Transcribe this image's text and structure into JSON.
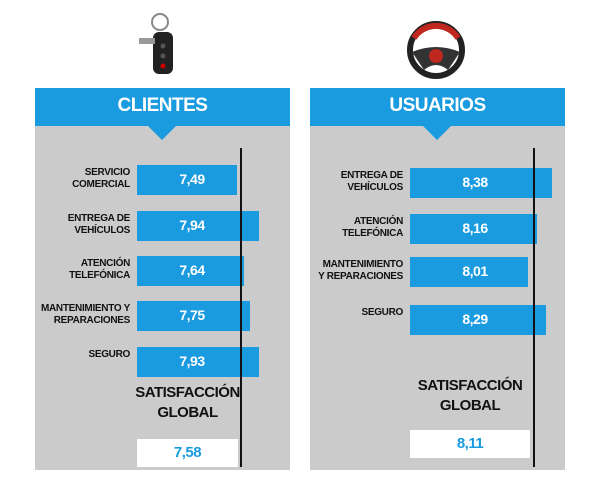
{
  "chart_data": [
    {
      "type": "bar",
      "orientation": "horizontal",
      "title": "CLIENTES",
      "categories": [
        "SERVICIO\nCOMERCIAL",
        "ENTREGA DE\nVEHÍCULOS",
        "ATENCIÓN\nTELEFÓNICA",
        "MANTENIMIENTO Y\nREPARACIONES",
        "SEGURO"
      ],
      "values": [
        7.49,
        7.94,
        7.64,
        7.75,
        7.93
      ],
      "value_labels": [
        "7,49",
        "7,94",
        "7,64",
        "7,75",
        "7,93"
      ],
      "color": "#1a9be0",
      "xlim": [
        5.45,
        8.0
      ],
      "global_label": "SATISFACCIÓN\nGLOBAL",
      "global_value": 7.58,
      "global_value_label": "7,58"
    },
    {
      "type": "bar",
      "orientation": "horizontal",
      "title": "USUARIOS",
      "categories": [
        "ENTREGA DE\nVEHÍCULOS",
        "ATENCIÓN\nTELEFÓNICA",
        "MANTENIMIENTO\nY REPARACIONES",
        "SEGURO"
      ],
      "values": [
        8.38,
        8.16,
        8.01,
        8.29
      ],
      "value_labels": [
        "8,38",
        "8,16",
        "8,01",
        "8,29"
      ],
      "color": "#1a9be0",
      "xlim": [
        6.21,
        8.4
      ],
      "global_label": "SATISFACCIÓN\nGLOBAL",
      "global_value": 8.11,
      "global_value_label": "8,11"
    }
  ]
}
